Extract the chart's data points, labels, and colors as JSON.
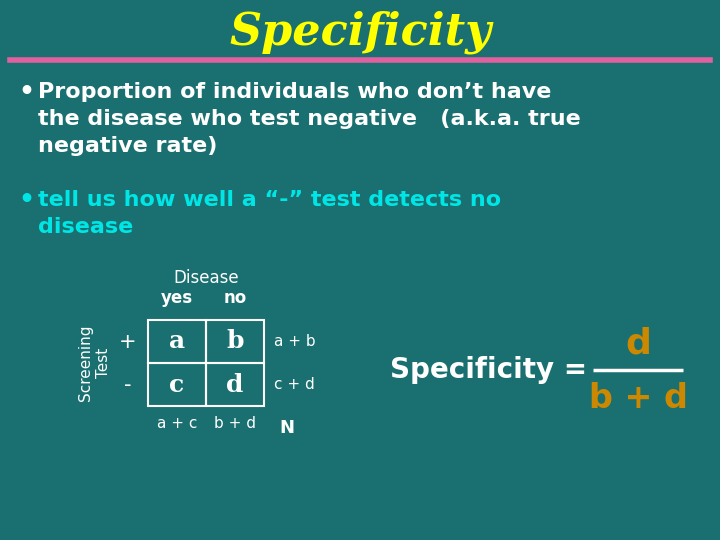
{
  "title": "Specificity",
  "title_color": "#FFFF00",
  "title_fontsize": 32,
  "bg_color": "#1A7070",
  "separator_color": "#E060A0",
  "bullet1_lines": [
    "Proportion of individuals who don’t have",
    "the disease who test negative   (a.k.a. true",
    "negative rate)"
  ],
  "bullet1_color": "#FFFFFF",
  "bullet2_lines": [
    "tell us how well a “-” test detects no",
    "disease"
  ],
  "bullet2_color": "#00E5E5",
  "bullet_fontsize": 16,
  "table_color": "#FFFFFF",
  "table_fontsize": 13,
  "cells": [
    [
      "a",
      "b"
    ],
    [
      "c",
      "d"
    ]
  ],
  "spec_label_color": "#FFFFFF",
  "spec_numerator": "d",
  "spec_denominator": "b + d",
  "spec_fraction_color": "#CC8800",
  "spec_line_color": "#FFFFFF",
  "spec_fontsize": 20
}
